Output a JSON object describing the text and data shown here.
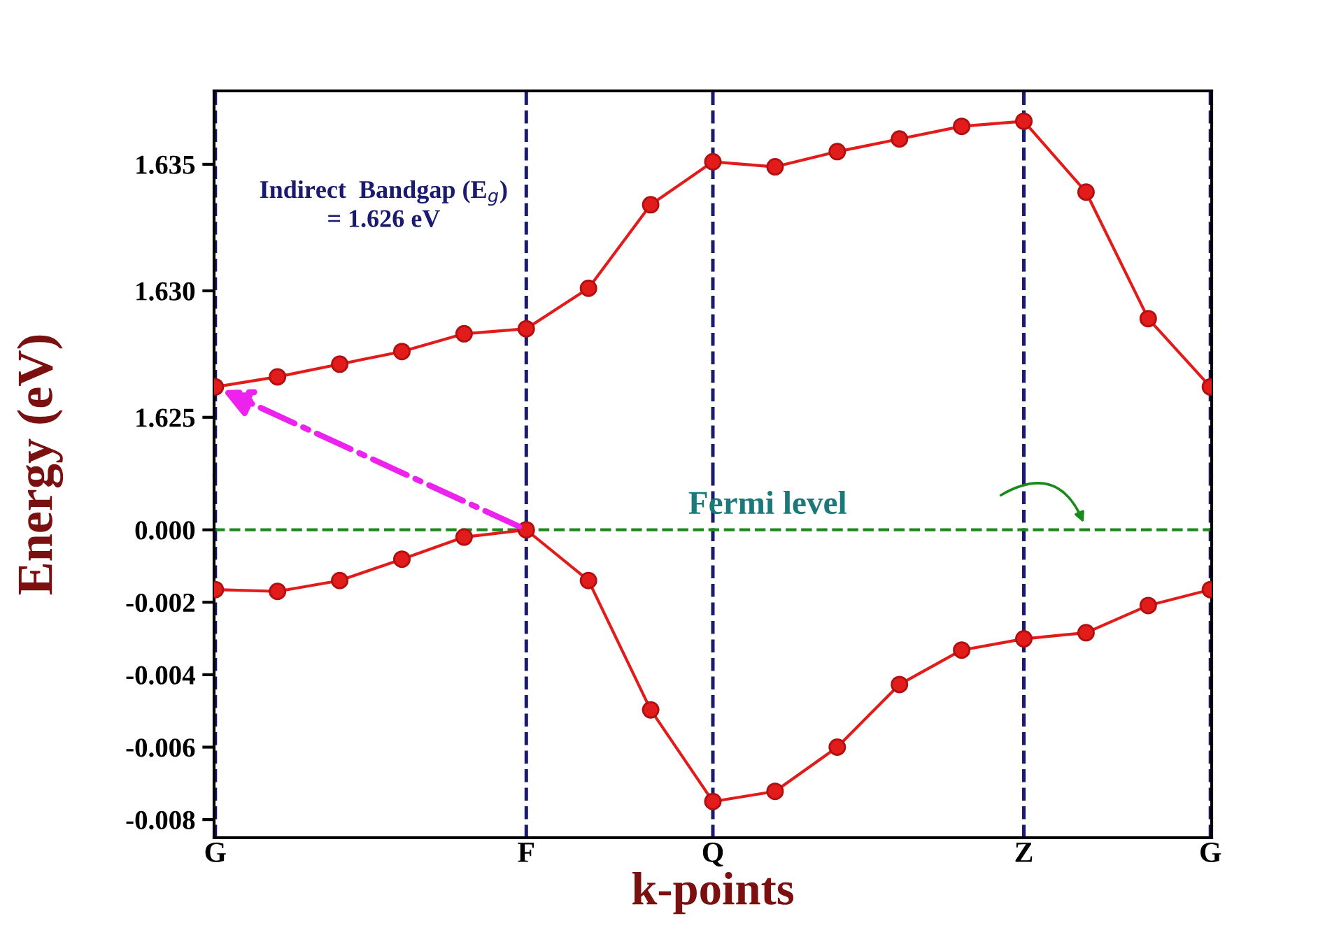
{
  "chart_data": [
    {
      "type": "line",
      "ylabel": "Energy (eV)",
      "annotations": [
        "Indirect  Bandgap (E$_{g}$)\n= 1.626 eV"
      ],
      "categories": [
        null,
        null,
        null,
        null,
        null,
        null,
        null,
        null,
        null,
        null,
        null,
        null,
        null,
        null,
        null,
        null,
        null
      ],
      "series": [
        {
          "color": "#e21b1b",
          "values": [
            1.6262,
            1.6266,
            1.6271,
            1.6276,
            1.6283,
            1.6285,
            1.6301,
            1.6334,
            1.6351,
            1.6349,
            1.6355,
            1.636,
            1.6365,
            1.6367,
            1.6339,
            1.6289,
            1.6262
          ]
        }
      ],
      "ylim": [
        1.6227,
        1.6379
      ],
      "yticks": [
        {
          "value": 1.625,
          "label": "1.625"
        },
        {
          "value": 1.63,
          "label": "1.630"
        },
        {
          "value": 1.635,
          "label": "1.635"
        }
      ],
      "tick_labels": "y",
      "marker": "circle",
      "line_style": "solid",
      "grid": "x",
      "legend": false
    },
    {
      "type": "line",
      "xlabel": "k-points",
      "categories": [
        "G",
        null,
        null,
        null,
        null,
        "F",
        null,
        null,
        "Q",
        null,
        null,
        null,
        null,
        "Z",
        null,
        null,
        "G"
      ],
      "series": [
        {
          "color": "#e21b1b",
          "values": [
            -0.00165,
            -0.0017,
            -0.0014,
            -0.00081,
            -0.0002,
            0,
            -0.0014,
            -0.00497,
            -0.0075,
            -0.00722,
            -0.006,
            -0.00427,
            -0.00332,
            -0.00301,
            -0.00284,
            -0.00209,
            -0.00165
          ]
        }
      ],
      "ylim": [
        -0.0085,
        0.0015
      ],
      "yticks": [
        {
          "value": 0,
          "label": "0.000"
        },
        {
          "value": -0.002,
          "label": "-0.002"
        },
        {
          "value": -0.004,
          "label": "-0.004"
        },
        {
          "value": -0.006,
          "label": "-0.006"
        },
        {
          "value": -0.008,
          "label": "-0.008"
        }
      ],
      "marker": "circle",
      "line_style": "solid",
      "grid": "x",
      "legend": false,
      "ref_lines": [
        {
          "axis": "y",
          "value": 0,
          "label": "Fermi level",
          "color": "#1a8a1a",
          "line_style": "dashed"
        }
      ]
    }
  ]
}
